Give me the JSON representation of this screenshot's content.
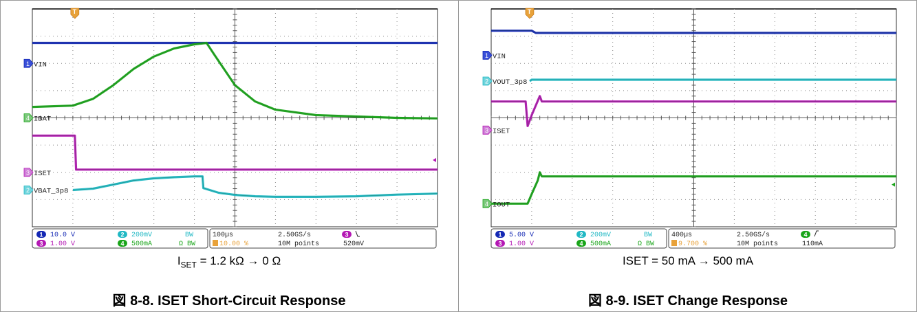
{
  "figures": [
    {
      "caption_label": "I",
      "caption_sub": "SET",
      "caption_rest": " = 1.2 kΩ → 0 Ω",
      "title": "図 8-8. ISET Short-Circuit Response",
      "trigger_marker": "T",
      "status": {
        "ch1_scale": "10.0 V",
        "ch3_scale": "1.00 V",
        "ch2_scale": "200mV",
        "ch4_scale": "500mA",
        "ch2_coupling": "BW",
        "ch4_coupling": "Ω BW",
        "timebase": "100µs",
        "trigger_pos": "10.00 %",
        "sample_rate": "2.50GS/s",
        "record_length": "10M points",
        "trigger_channel": "3",
        "trigger_slope": "falling",
        "trigger_level": "520mV"
      }
    },
    {
      "caption_text": "ISET = 50 mA → 500 mA",
      "title": "図 8-9. ISET Change Response",
      "trigger_marker": "T",
      "status": {
        "ch1_scale": "5.00 V",
        "ch3_scale": "1.00 V",
        "ch2_scale": "200mV",
        "ch4_scale": "500mA",
        "ch2_coupling": "BW",
        "ch4_coupling": "Ω BW",
        "timebase": "400µs",
        "trigger_pos": "9.700 %",
        "sample_rate": "2.50GS/s",
        "record_length": "10M points",
        "trigger_channel": "4",
        "trigger_slope": "rising",
        "trigger_level": "110mA"
      }
    }
  ],
  "chart_data": [
    {
      "type": "line",
      "title": "図 8-8. ISET Short-Circuit Response",
      "x_unit": "div",
      "xlim": [
        0,
        10
      ],
      "ylim": [
        0,
        8
      ],
      "grid": true,
      "series": [
        {
          "name": "VIN",
          "channel": 1,
          "color": "#1428b4",
          "x": [
            0,
            10
          ],
          "y": [
            6.75,
            6.75
          ]
        },
        {
          "name": "IBAT",
          "channel": 4,
          "color": "#1aa51a",
          "x": [
            0,
            1.0,
            1.5,
            2.0,
            2.5,
            3.0,
            3.5,
            4.0,
            4.3,
            4.5,
            5.0,
            5.5,
            6.0,
            7.0,
            8.0,
            9.0,
            10.0
          ],
          "y": [
            4.4,
            4.45,
            4.7,
            5.2,
            5.8,
            6.25,
            6.55,
            6.7,
            6.75,
            6.3,
            5.2,
            4.6,
            4.3,
            4.1,
            4.05,
            4.0,
            3.98
          ]
        },
        {
          "name": "ISET",
          "channel": 3,
          "color": "#b418b4",
          "x": [
            0,
            1.05,
            1.08,
            10
          ],
          "y": [
            3.35,
            3.35,
            2.1,
            2.1
          ]
        },
        {
          "name": "VBAT_3p8",
          "channel": 2,
          "color": "#20b8c4",
          "x": [
            1.0,
            1.5,
            2.0,
            2.5,
            3.0,
            3.5,
            4.0,
            4.2,
            4.22,
            4.6,
            5.0,
            5.5,
            6.0,
            7.0,
            8.0,
            9.0,
            10.0
          ],
          "y": [
            1.35,
            1.4,
            1.55,
            1.7,
            1.78,
            1.82,
            1.85,
            1.85,
            1.42,
            1.25,
            1.17,
            1.12,
            1.1,
            1.1,
            1.12,
            1.18,
            1.22
          ]
        }
      ],
      "channel_markers": [
        {
          "channel": "1",
          "label": "VIN",
          "level": 6.0
        },
        {
          "channel": "4",
          "label": "IBAT",
          "level": 4.0
        },
        {
          "channel": "3",
          "label": "ISET",
          "level": 2.0
        },
        {
          "channel": "2",
          "label": "VBAT_3p8",
          "level": 1.35
        }
      ]
    },
    {
      "type": "line",
      "title": "図 8-9. ISET Change Response",
      "x_unit": "div",
      "xlim": [
        0,
        10
      ],
      "ylim": [
        0,
        8
      ],
      "grid": true,
      "series": [
        {
          "name": "VIN",
          "channel": 1,
          "color": "#1428b4",
          "x": [
            0,
            1.0,
            1.1,
            10
          ],
          "y": [
            7.2,
            7.2,
            7.12,
            7.12
          ]
        },
        {
          "name": "VOUT_3p8",
          "channel": 2,
          "color": "#20b8c4",
          "x": [
            0.95,
            1.0,
            10
          ],
          "y": [
            5.35,
            5.4,
            5.4
          ]
        },
        {
          "name": "ISET",
          "channel": 3,
          "color": "#b418b4",
          "x": [
            0,
            0.85,
            0.9,
            1.0,
            1.2,
            1.25,
            10
          ],
          "y": [
            4.6,
            4.6,
            3.7,
            4.1,
            4.8,
            4.6,
            4.6
          ]
        },
        {
          "name": "IOUT",
          "channel": 4,
          "color": "#1aa51a",
          "x": [
            0,
            0.9,
            1.0,
            1.15,
            1.2,
            1.25,
            10
          ],
          "y": [
            0.85,
            0.85,
            1.2,
            1.7,
            2.0,
            1.85,
            1.85
          ]
        }
      ],
      "channel_markers": [
        {
          "channel": "1",
          "label": "VIN",
          "level": 6.3
        },
        {
          "channel": "2",
          "label": "VOUT_3p8",
          "level": 5.35
        },
        {
          "channel": "3",
          "label": "ISET",
          "level": 3.55
        },
        {
          "channel": "4",
          "label": "IOUT",
          "level": 0.85
        }
      ]
    }
  ]
}
